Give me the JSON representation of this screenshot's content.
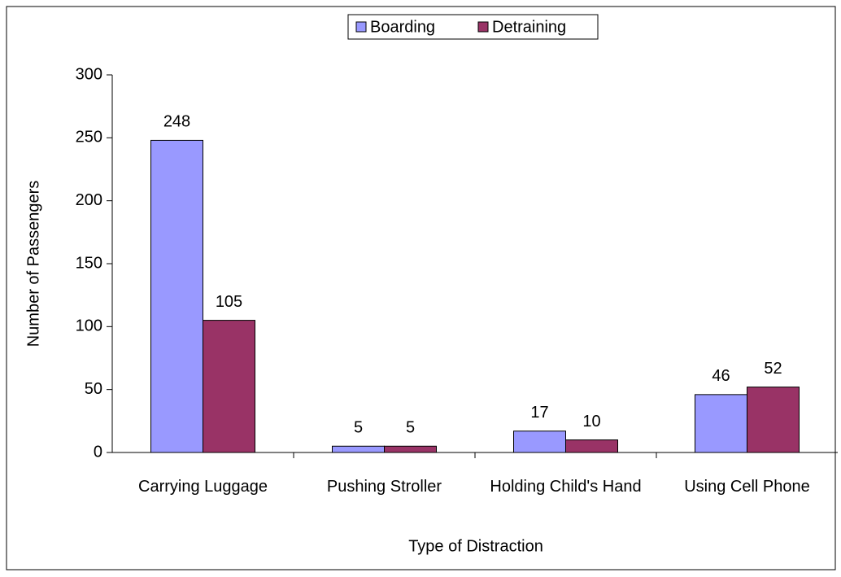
{
  "chart_data": {
    "type": "bar",
    "x_label": "Type of Distraction",
    "y_label": "Number of Passengers",
    "categories": [
      "Carrying Luggage",
      "Pushing Stroller",
      "Holding Child's Hand",
      "Using Cell Phone"
    ],
    "series": [
      {
        "name": "Boarding",
        "color": "#9999ff",
        "values": [
          248,
          5,
          17,
          46
        ]
      },
      {
        "name": "Detraining",
        "color": "#993366",
        "values": [
          105,
          5,
          10,
          52
        ]
      }
    ],
    "ylim": [
      0,
      300
    ],
    "yticks": [
      0,
      50,
      100,
      150,
      200,
      250,
      300
    ],
    "legend": "top",
    "grid": false
  }
}
